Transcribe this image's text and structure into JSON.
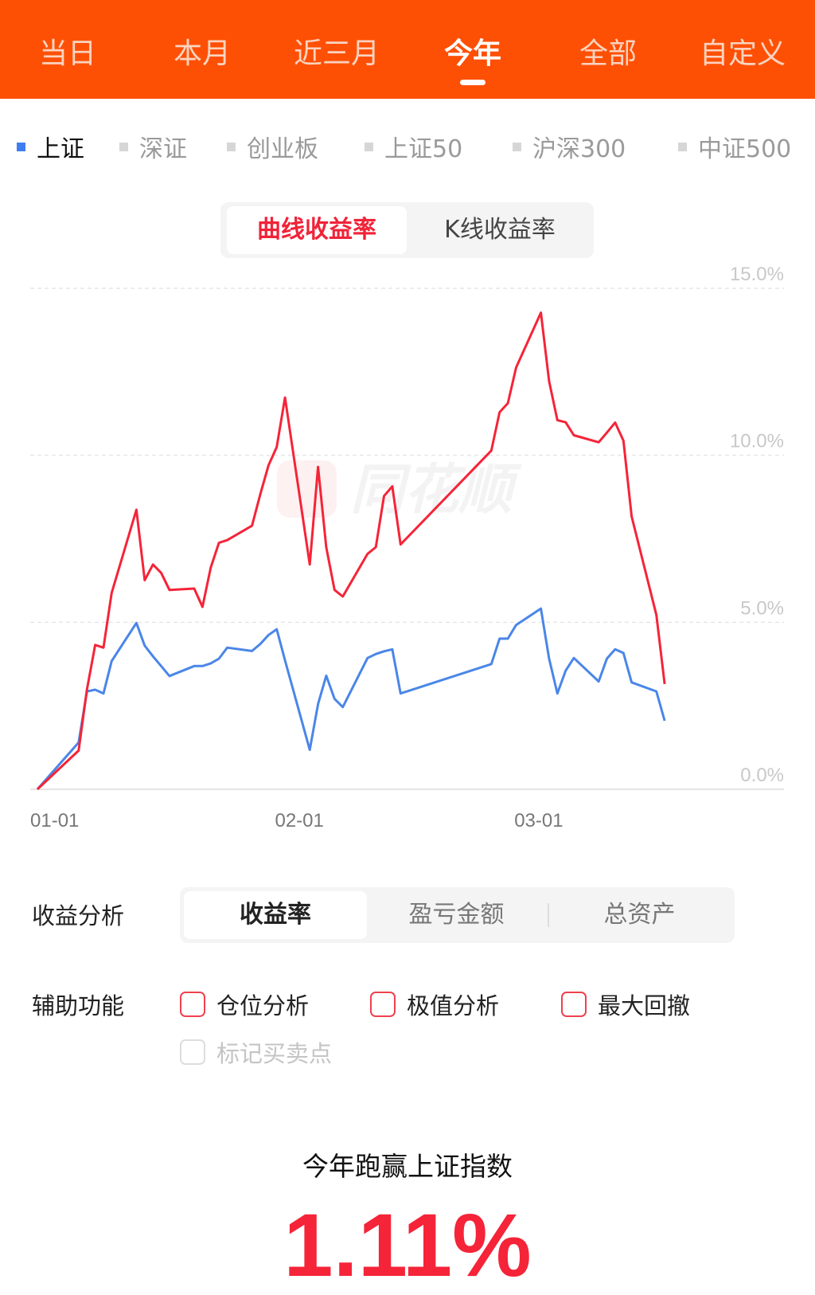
{
  "period_tabs": [
    {
      "label": "当日"
    },
    {
      "label": "本月"
    },
    {
      "label": "近三月"
    },
    {
      "label": "今年",
      "active": true
    },
    {
      "label": "全部"
    },
    {
      "label": "自定义"
    }
  ],
  "index_tabs": [
    {
      "label": "上证",
      "active": true
    },
    {
      "label": "深证"
    },
    {
      "label": "创业板"
    },
    {
      "label": "上证50"
    },
    {
      "label": "沪深300"
    },
    {
      "label": "中证500"
    }
  ],
  "chart_toggle": [
    {
      "label": "曲线收益率",
      "active": true
    },
    {
      "label": "K线收益率"
    }
  ],
  "watermark": "同花顺",
  "colors": {
    "header": "#fe5005",
    "account": "#f52438",
    "benchmark": "#4a86e8",
    "accent": "#f02338"
  },
  "chart_data": {
    "type": "line",
    "ylim": [
      0,
      15
    ],
    "yticks": [
      "0.0%",
      "5.0%",
      "10.0%",
      "15.0%"
    ],
    "ytick_values": [
      0,
      5,
      10,
      15
    ],
    "xticks": [
      "01-01",
      "02-01",
      "03-01"
    ],
    "grid": true,
    "x": [
      "01-01",
      "01-06",
      "01-07",
      "01-08",
      "01-09",
      "01-10",
      "01-13",
      "01-14",
      "01-15",
      "01-16",
      "01-17",
      "01-20",
      "01-21",
      "01-22",
      "01-23",
      "01-24",
      "01-27",
      "01-28",
      "01-29",
      "01-30",
      "01-31",
      "02-03",
      "02-04",
      "02-05",
      "02-06",
      "02-07",
      "02-10",
      "02-11",
      "02-12",
      "02-13",
      "02-14",
      "02-25",
      "02-26",
      "02-27",
      "02-28",
      "03-02",
      "03-03",
      "03-04",
      "03-05",
      "03-06",
      "03-09",
      "03-10",
      "03-11",
      "03-12",
      "03-13",
      "03-16",
      "03-17"
    ],
    "series": [
      {
        "color": "#f52438",
        "values": [
          0,
          1.16,
          2.98,
          4.32,
          4.24,
          5.88,
          8.37,
          6.26,
          6.73,
          6.48,
          5.97,
          6.01,
          5.46,
          6.64,
          7.38,
          7.46,
          7.89,
          8.83,
          9.7,
          10.25,
          11.73,
          6.73,
          9.65,
          7.25,
          5.97,
          5.77,
          7.05,
          7.25,
          8.78,
          9.07,
          7.33,
          10.14,
          11.29,
          11.56,
          12.63,
          14.27,
          12.22,
          11.05,
          10.99,
          10.6,
          10.39,
          10.68,
          10.98,
          10.44,
          8.17,
          5.22,
          3.15
        ]
      },
      {
        "color": "#4a86e8",
        "values": [
          0,
          1.4,
          2.93,
          2.98,
          2.87,
          3.84,
          4.98,
          4.3,
          3.98,
          3.69,
          3.39,
          3.69,
          3.69,
          3.77,
          3.91,
          4.24,
          4.14,
          4.35,
          4.62,
          4.79,
          3.86,
          1.18,
          2.55,
          3.4,
          2.71,
          2.46,
          3.93,
          4.05,
          4.13,
          4.19,
          2.87,
          3.75,
          4.51,
          4.51,
          4.92,
          5.41,
          3.91,
          2.87,
          3.55,
          3.93,
          3.23,
          3.91,
          4.19,
          4.08,
          3.2,
          2.93,
          2.05
        ]
      }
    ]
  },
  "analysis": {
    "label": "收益分析",
    "options": [
      {
        "label": "收益率",
        "active": true
      },
      {
        "label": "盈亏金额"
      },
      {
        "label": "总资产"
      }
    ]
  },
  "aux": {
    "label": "辅助功能",
    "options": [
      {
        "label": "仓位分析"
      },
      {
        "label": "极值分析"
      },
      {
        "label": "最大回撤"
      },
      {
        "label": "标记买卖点",
        "disabled": true
      }
    ]
  },
  "beat": {
    "title": "今年跑赢上证指数",
    "value": "1.11%"
  }
}
